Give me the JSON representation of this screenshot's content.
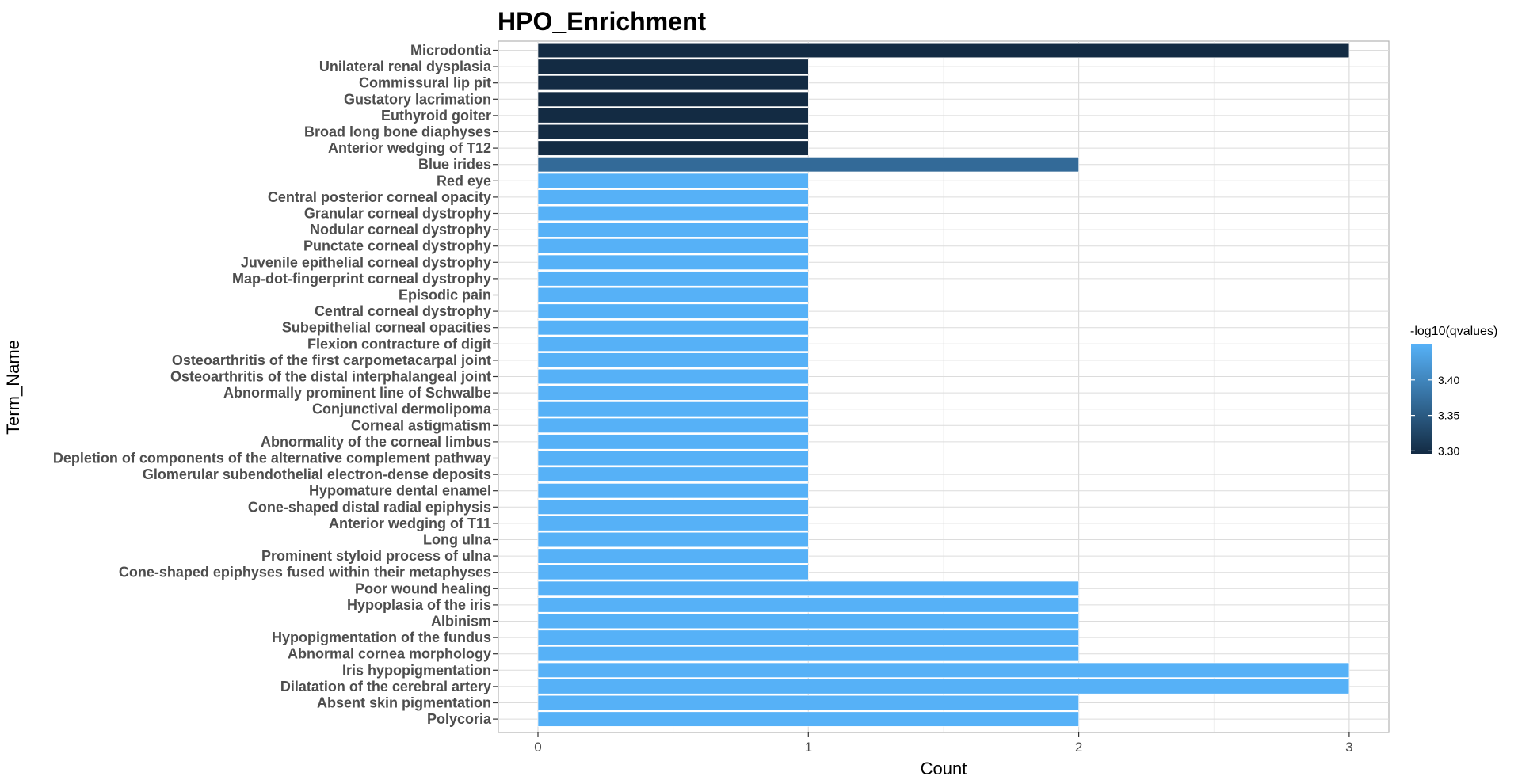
{
  "chart_data": {
    "type": "bar",
    "orientation": "horizontal",
    "title": "HPO_Enrichment",
    "xlabel": "Count",
    "ylabel": "Term_Name",
    "xlim": [
      0,
      3.15
    ],
    "xticks": [
      0,
      1,
      2,
      3
    ],
    "grid": "on",
    "legend": {
      "title": "-log10(qvalues)",
      "placement": "right",
      "ticks": [
        "3.30",
        "3.35",
        "3.40"
      ],
      "range": [
        3.296,
        3.45
      ],
      "color_low": "#132B43",
      "color_high": "#56B1F7"
    },
    "categories": [
      "Microdontia",
      "Unilateral renal dysplasia",
      "Commissural lip pit",
      "Gustatory lacrimation",
      "Euthyroid goiter",
      "Broad long bone diaphyses",
      "Anterior wedging of T12",
      "Blue irides",
      "Red eye",
      "Central posterior corneal opacity",
      "Granular corneal dystrophy",
      "Nodular corneal dystrophy",
      "Punctate corneal dystrophy",
      "Juvenile epithelial corneal dystrophy",
      "Map-dot-fingerprint corneal dystrophy",
      "Episodic pain",
      "Central corneal dystrophy",
      "Subepithelial corneal opacities",
      "Flexion contracture of digit",
      "Osteoarthritis of the first carpometacarpal joint",
      "Osteoarthritis of the distal interphalangeal joint",
      "Abnormally prominent line of Schwalbe",
      "Conjunctival dermolipoma",
      "Corneal astigmatism",
      "Abnormality of the corneal limbus",
      "Depletion of components of the alternative complement pathway",
      "Glomerular subendothelial electron-dense deposits",
      "Hypomature dental enamel",
      "Cone-shaped distal radial epiphysis",
      "Anterior wedging of T11",
      "Long ulna",
      "Prominent styloid process of ulna",
      "Cone-shaped epiphyses fused within their metaphyses",
      "Poor wound healing",
      "Hypoplasia of the iris",
      "Albinism",
      "Hypopigmentation of the fundus",
      "Abnormal cornea morphology",
      "Iris hypopigmentation",
      "Dilatation of the cerebral artery",
      "Absent skin pigmentation",
      "Polycoria"
    ],
    "values": [
      3,
      1,
      1,
      1,
      1,
      1,
      1,
      2,
      1,
      1,
      1,
      1,
      1,
      1,
      1,
      1,
      1,
      1,
      1,
      1,
      1,
      1,
      1,
      1,
      1,
      1,
      1,
      1,
      1,
      1,
      1,
      1,
      1,
      2,
      2,
      2,
      2,
      2,
      3,
      3,
      2,
      2
    ],
    "colors": [
      "#132B43",
      "#132B43",
      "#132B43",
      "#132B43",
      "#132B43",
      "#132B43",
      "#132B43",
      "#336A98",
      "#56B1F7",
      "#56B1F7",
      "#56B1F7",
      "#56B1F7",
      "#56B1F7",
      "#56B1F7",
      "#56B1F7",
      "#56B1F7",
      "#56B1F7",
      "#56B1F7",
      "#56B1F7",
      "#56B1F7",
      "#56B1F7",
      "#56B1F7",
      "#56B1F7",
      "#56B1F7",
      "#56B1F7",
      "#56B1F7",
      "#56B1F7",
      "#56B1F7",
      "#56B1F7",
      "#56B1F7",
      "#56B1F7",
      "#56B1F7",
      "#56B1F7",
      "#56B1F7",
      "#56B1F7",
      "#56B1F7",
      "#56B1F7",
      "#56B1F7",
      "#56B1F7",
      "#56B1F7",
      "#56B1F7",
      "#56B1F7"
    ]
  }
}
